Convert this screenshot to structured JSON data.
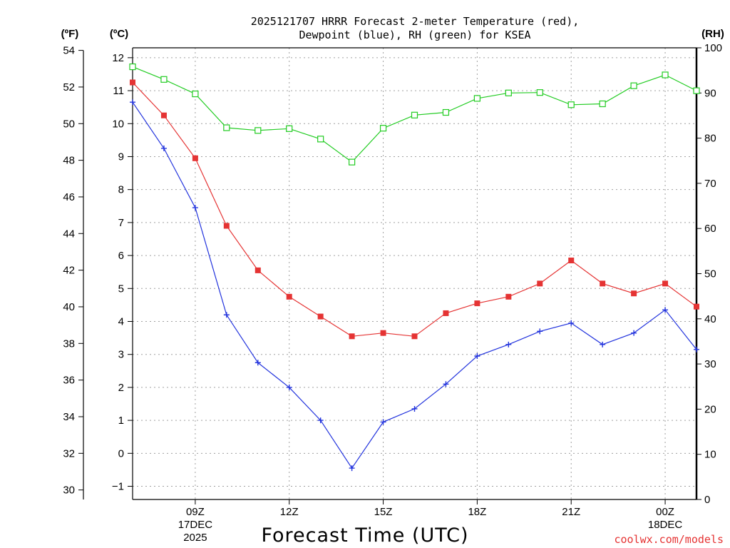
{
  "chart_data": {
    "type": "line",
    "title_line1": "2025121707 HRRR Forecast 2-meter Temperature (red),",
    "title_line2": "Dewpoint (blue), RH (green) for KSEA",
    "xlabel": "Forecast Time (UTC)",
    "credit": "coolwx.com/models",
    "units": {
      "fahrenheit": "(ºF)",
      "celsius": "(ºC)",
      "rh": "(RH)"
    },
    "y_celsius": {
      "range": [
        -1.4,
        12.3
      ],
      "ticks": [
        -1,
        0,
        1,
        2,
        3,
        4,
        5,
        6,
        7,
        8,
        9,
        10,
        11,
        12
      ]
    },
    "y_fahrenheit": {
      "ticks": [
        30,
        32,
        34,
        36,
        38,
        40,
        42,
        44,
        46,
        48,
        50,
        52,
        54
      ]
    },
    "y_rh": {
      "range": [
        0,
        100
      ],
      "ticks": [
        0,
        10,
        20,
        30,
        40,
        50,
        60,
        70,
        80,
        90,
        100
      ]
    },
    "x_hours": {
      "range": [
        7,
        25
      ],
      "ticks": [
        9,
        12,
        15,
        18,
        21,
        24
      ]
    },
    "x_tick_labels": [
      {
        "hour": 9,
        "lines": [
          "09Z",
          "17DEC",
          "2025"
        ]
      },
      {
        "hour": 12,
        "lines": [
          "12Z"
        ]
      },
      {
        "hour": 15,
        "lines": [
          "15Z"
        ]
      },
      {
        "hour": 18,
        "lines": [
          "18Z"
        ]
      },
      {
        "hour": 21,
        "lines": [
          "21Z"
        ]
      },
      {
        "hour": 24,
        "lines": [
          "00Z",
          "18DEC"
        ]
      }
    ],
    "x": [
      7,
      8,
      9,
      10,
      11,
      12,
      13,
      14,
      15,
      16,
      17,
      18,
      19,
      20,
      21,
      22,
      23,
      24,
      25
    ],
    "series": [
      {
        "name": "RH",
        "color": "#22cc22",
        "axis": "rh",
        "marker": "open-square",
        "values": [
          95.8,
          93.0,
          89.8,
          82.3,
          81.7,
          82.1,
          79.8,
          74.7,
          82.2,
          85.1,
          85.7,
          88.8,
          90.0,
          90.1,
          87.4,
          87.6,
          91.6,
          94.0,
          90.5
        ]
      },
      {
        "name": "Temperature",
        "color": "#e53333",
        "axis": "celsius",
        "marker": "filled-square",
        "values": [
          11.25,
          10.25,
          8.95,
          6.9,
          5.55,
          4.75,
          4.15,
          3.55,
          3.65,
          3.55,
          4.25,
          4.55,
          4.75,
          5.15,
          5.85,
          5.15,
          4.85,
          5.15,
          4.45
        ]
      },
      {
        "name": "Dewpoint",
        "color": "#2233dd",
        "axis": "celsius",
        "marker": "plus",
        "values": [
          10.65,
          9.25,
          7.45,
          4.2,
          2.75,
          2.0,
          1.0,
          -0.45,
          0.95,
          1.35,
          2.1,
          2.95,
          3.3,
          3.7,
          3.95,
          3.3,
          3.65,
          4.35,
          3.15
        ]
      }
    ]
  }
}
